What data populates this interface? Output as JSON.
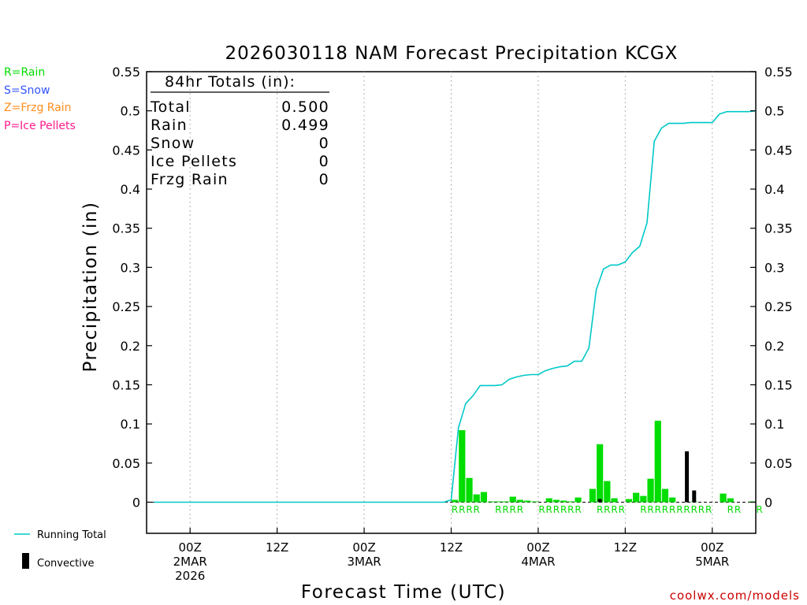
{
  "chart_data": {
    "type": "bar",
    "title": "2026030118 NAM Forecast Precipitation KCGX",
    "xlabel": "Forecast Time (UTC)",
    "ylabel": "Precipitation (in)",
    "ylim": [
      -0.04,
      0.55
    ],
    "y_ticks": [
      0,
      0.05,
      0.1,
      0.15,
      0.2,
      0.25,
      0.3,
      0.35,
      0.4,
      0.45,
      0.5,
      0.55
    ],
    "y_tick_labels": [
      "0",
      "0.05",
      "0.1",
      "0.15",
      "0.2",
      "0.25",
      "0.3",
      "0.35",
      "0.4",
      "0.45",
      "0.5",
      "0.55"
    ],
    "xlim": [
      -6,
      78
    ],
    "x_unit": "hours since 2026-03-02 00Z",
    "x_ticks": [
      {
        "h": 0,
        "lines": [
          "00Z",
          "2MAR",
          "2026"
        ]
      },
      {
        "h": 12,
        "lines": [
          "12Z"
        ]
      },
      {
        "h": 24,
        "lines": [
          "00Z",
          "3MAR"
        ]
      },
      {
        "h": 36,
        "lines": [
          "12Z"
        ]
      },
      {
        "h": 48,
        "lines": [
          "00Z",
          "4MAR"
        ]
      },
      {
        "h": 60,
        "lines": [
          "12Z"
        ]
      },
      {
        "h": 72,
        "lines": [
          "00Z",
          "5MAR"
        ]
      }
    ],
    "grid": "vertical dotted",
    "series": [
      {
        "name": "Rain",
        "type": "bar",
        "color": "#00dd00",
        "x": [
          36,
          37,
          38,
          39,
          40,
          41,
          42,
          43,
          44,
          45,
          46,
          47,
          48,
          49,
          50,
          51,
          52,
          53,
          54,
          55,
          56,
          57,
          58,
          59,
          60,
          61,
          62,
          63,
          64,
          65,
          66,
          67,
          68,
          69,
          70,
          71,
          72,
          73,
          74,
          75,
          76,
          77
        ],
        "values": [
          0.003,
          0.092,
          0.031,
          0.01,
          0.013,
          0.001,
          0.001,
          0.001,
          0.007,
          0.003,
          0.002,
          0.001,
          0.0,
          0.005,
          0.003,
          0.002,
          0.001,
          0.006,
          0.0,
          0.017,
          0.074,
          0.027,
          0.005,
          0.0,
          0.004,
          0.012,
          0.008,
          0.03,
          0.104,
          0.017,
          0.006,
          0.0,
          0.0,
          0.001,
          0.0,
          0.0,
          0.0,
          0.011,
          0.005,
          0.0,
          0.0,
          0.001
        ]
      },
      {
        "name": "Convective",
        "type": "bar",
        "color": "#000000",
        "x": [
          56,
          68,
          69
        ],
        "values": [
          0.004,
          0.065,
          0.015
        ]
      },
      {
        "name": "Running Total",
        "type": "line",
        "color": "#00c8c8",
        "x": [
          -5,
          35,
          36,
          37,
          38,
          39,
          40,
          41,
          42,
          43,
          44,
          45,
          46,
          47,
          48,
          49,
          50,
          51,
          52,
          53,
          54,
          55,
          56,
          57,
          58,
          59,
          60,
          61,
          62,
          63,
          64,
          65,
          66,
          67,
          68,
          69,
          70,
          71,
          72,
          73,
          74,
          75,
          76,
          77,
          78
        ],
        "values": [
          0,
          0,
          0.003,
          0.095,
          0.126,
          0.136,
          0.149,
          0.149,
          0.149,
          0.15,
          0.157,
          0.16,
          0.162,
          0.163,
          0.163,
          0.168,
          0.171,
          0.173,
          0.174,
          0.18,
          0.18,
          0.197,
          0.271,
          0.298,
          0.303,
          0.303,
          0.307,
          0.319,
          0.327,
          0.357,
          0.461,
          0.478,
          0.484,
          0.484,
          0.484,
          0.485,
          0.485,
          0.485,
          0.485,
          0.496,
          0.499,
          0.499,
          0.499,
          0.499,
          0.5
        ]
      }
    ],
    "precip_type_markers": {
      "x": [
        36,
        37,
        38,
        39,
        42,
        43,
        44,
        45,
        48,
        49,
        50,
        51,
        52,
        53,
        56,
        57,
        58,
        59,
        62,
        63,
        64,
        65,
        66,
        67,
        68,
        69,
        70,
        71,
        74,
        75,
        78
      ],
      "label": "R",
      "color": "#00dd00"
    },
    "legend_left": [
      {
        "text": "R=Rain",
        "color": "#00dd00"
      },
      {
        "text": "S=Snow",
        "color": "#3355ff"
      },
      {
        "text": "Z=Frzg Rain",
        "color": "#ff8c1a"
      },
      {
        "text": "P=Ice Pellets",
        "color": "#ff1a8c"
      }
    ],
    "legend_bottom": [
      {
        "text": "Running Total",
        "kind": "line",
        "color": "#00c8c8"
      },
      {
        "text": "Convective",
        "kind": "bar",
        "color": "#000000"
      }
    ],
    "totals_box": {
      "heading": "84hr Totals (in):",
      "rows": [
        {
          "label": "Total",
          "value": "0.500"
        },
        {
          "label": "Rain",
          "value": "0.499"
        },
        {
          "label": "Snow",
          "value": "0"
        },
        {
          "label": "Ice Pellets",
          "value": "0"
        },
        {
          "label": "Frzg Rain",
          "value": "0"
        }
      ]
    },
    "credit": "coolwx.com/models",
    "credit_color": "#cc0000"
  }
}
